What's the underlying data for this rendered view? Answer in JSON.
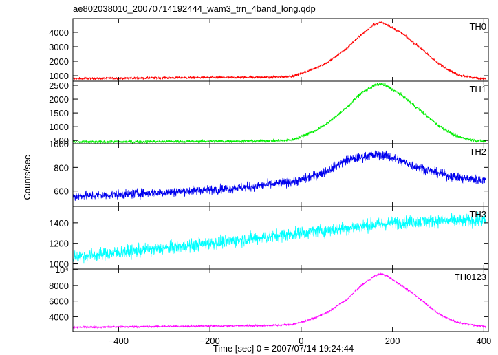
{
  "title": "ae802038010_20070714192444_wam3_trn_4band_long.qdp",
  "ylabel": "Counts/sec",
  "xlabel": "Time [sec] 0 = 2007/07/14 19:24:44",
  "chart_data": {
    "type": "line",
    "title": "ae802038010_20070714192444_wam3_trn_4band_long.qdp",
    "xlabel": "Time [sec] 0 = 2007/07/14 19:24:44",
    "ylabel": "Counts/sec",
    "xlim": [
      -500,
      410
    ],
    "x_ticks": [
      -400,
      -200,
      0,
      200,
      400
    ],
    "x_tick_labels": [
      "−400",
      "−200",
      "0",
      "200",
      "400"
    ],
    "grid": false,
    "panels": [
      {
        "name": "TH0",
        "color": "#ff0000",
        "ylim": [
          620,
          4950
        ],
        "y_ticks": [
          1000,
          2000,
          3000,
          4000
        ],
        "y_tick_labels": [
          "1000",
          "2000",
          "3000",
          "4000"
        ],
        "noise": 60,
        "x": [
          -500,
          -400,
          -300,
          -200,
          -100,
          -50,
          -20,
          0,
          30,
          60,
          100,
          130,
          160,
          175,
          190,
          220,
          260,
          300,
          340,
          380,
          405
        ],
        "values": [
          800,
          820,
          850,
          870,
          890,
          910,
          960,
          1150,
          1500,
          1950,
          2900,
          3800,
          4550,
          4700,
          4500,
          3950,
          2950,
          1850,
          1100,
          850,
          790
        ]
      },
      {
        "name": "TH1",
        "color": "#00ee00",
        "ylim": [
          380,
          2650
        ],
        "y_ticks": [
          500,
          1000,
          1500,
          2000,
          2500
        ],
        "y_tick_labels": [
          "500",
          "1000",
          "1500",
          "2000",
          "2500"
        ],
        "noise": 40,
        "x": [
          -500,
          -400,
          -300,
          -200,
          -100,
          -50,
          -20,
          0,
          30,
          60,
          100,
          130,
          160,
          175,
          190,
          220,
          260,
          300,
          340,
          380,
          405
        ],
        "values": [
          440,
          450,
          460,
          470,
          480,
          490,
          520,
          640,
          850,
          1150,
          1700,
          2200,
          2500,
          2560,
          2450,
          2150,
          1600,
          1050,
          650,
          500,
          460
        ]
      },
      {
        "name": "TH2",
        "color": "#0000ee",
        "ylim": [
          470,
          1000
        ],
        "y_ticks": [
          600,
          800,
          1000
        ],
        "y_tick_labels": [
          "600",
          "800",
          "1000"
        ],
        "noise": 28,
        "x": [
          -500,
          -400,
          -300,
          -200,
          -100,
          0,
          50,
          100,
          150,
          180,
          200,
          250,
          300,
          350,
          405
        ],
        "values": [
          555,
          570,
          590,
          610,
          640,
          690,
          760,
          860,
          900,
          905,
          880,
          810,
          750,
          710,
          690
        ]
      },
      {
        "name": "TH3",
        "color": "#00ffff",
        "ylim": [
          950,
          1560
        ],
        "y_ticks": [
          1000,
          1200,
          1400
        ],
        "y_tick_labels": [
          "1000",
          "1200",
          "1400"
        ],
        "noise": 45,
        "x": [
          -500,
          -400,
          -300,
          -200,
          -100,
          0,
          100,
          200,
          300,
          405
        ],
        "values": [
          1070,
          1110,
          1150,
          1200,
          1250,
          1300,
          1350,
          1400,
          1420,
          1420
        ]
      },
      {
        "name": "TH0123",
        "color": "#ff00ff",
        "ylim": [
          2100,
          10100
        ],
        "y_ticks": [
          4000,
          6000,
          8000,
          10000
        ],
        "y_tick_labels": [
          "4000",
          "6000",
          "8000",
          "10⁴"
        ],
        "noise": 90,
        "x": [
          -500,
          -400,
          -300,
          -200,
          -100,
          -50,
          -20,
          0,
          30,
          60,
          100,
          130,
          160,
          175,
          190,
          220,
          260,
          300,
          340,
          380,
          405
        ],
        "values": [
          2650,
          2700,
          2750,
          2800,
          2850,
          2900,
          3000,
          3300,
          3850,
          4650,
          6200,
          7900,
          9200,
          9500,
          9150,
          8000,
          6300,
          4400,
          3300,
          2900,
          2750
        ]
      }
    ]
  }
}
